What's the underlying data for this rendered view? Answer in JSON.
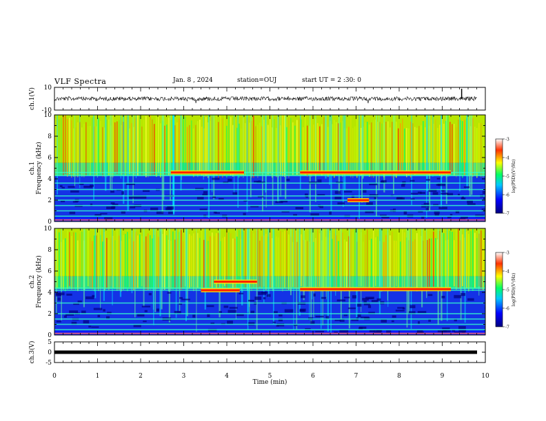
{
  "header": {
    "title": "VLF Spectra",
    "date": "Jan. 8 , 2024",
    "station": "station=OUJ",
    "start": "start UT = 2 :30: 0"
  },
  "chart_data": [
    {
      "type": "line",
      "panel": "ch.1 waveform",
      "ylabel": "ch.1(V)",
      "ylim": [
        -10,
        10
      ],
      "yticks": [
        "10",
        "-10"
      ],
      "xlim": [
        0,
        10
      ],
      "series": [
        {
          "values_mean": 0,
          "color": "#000000"
        }
      ]
    },
    {
      "type": "heatmap",
      "panel": "ch.1 spectrogram",
      "ylabel": "ch.1 Frequency (kHz)",
      "ylim": [
        0,
        10
      ],
      "yticks": [
        "0",
        "2",
        "4",
        "6",
        "8",
        "10"
      ],
      "xlim": [
        0,
        10
      ],
      "colorbar": {
        "label": "log(PSD)(V²/Hz)",
        "range": [
          -7,
          -3
        ],
        "ticks": [
          "-3",
          "-4",
          "-5",
          "-6",
          "-7"
        ]
      },
      "tones_khz": [
        0.5,
        1.0,
        1.5,
        2.0,
        2.4,
        3.0,
        3.6,
        4.3,
        4.6
      ],
      "intense_bands": [
        {
          "t_start": 2.7,
          "t_end": 4.4,
          "freq_khz": 4.6
        },
        {
          "t_start": 5.7,
          "t_end": 9.2,
          "freq_khz": 4.6
        },
        {
          "t_start": 6.8,
          "t_end": 7.3,
          "freq_khz": 2.0
        }
      ]
    },
    {
      "type": "heatmap",
      "panel": "ch.2 spectrogram",
      "ylabel": "ch.2 Frequency (kHz)",
      "ylim": [
        0,
        10
      ],
      "yticks": [
        "0",
        "2",
        "4",
        "6",
        "8",
        "10"
      ],
      "xlim": [
        0,
        10
      ],
      "colorbar": {
        "label": "log(PSD)(V²/Hz)",
        "range": [
          -7,
          -3
        ],
        "ticks": [
          "-3",
          "-4",
          "-5",
          "-6",
          "-7"
        ]
      },
      "tones_khz": [
        0.5,
        1.0,
        1.5,
        2.0,
        3.0,
        4.2,
        4.4
      ],
      "intense_bands": [
        {
          "t_start": 3.4,
          "t_end": 4.3,
          "freq_khz": 4.2
        },
        {
          "t_start": 5.7,
          "t_end": 9.2,
          "freq_khz": 4.3
        },
        {
          "t_start": 3.7,
          "t_end": 4.7,
          "freq_khz": 5.0
        }
      ]
    },
    {
      "type": "line",
      "panel": "ch.3 waveform",
      "ylabel": "ch.3(V)",
      "ylim": [
        -5,
        5
      ],
      "yticks": [
        "5",
        "0",
        "-5"
      ],
      "xlim": [
        0,
        10
      ],
      "series": [
        {
          "values_mean": 0,
          "color": "#000000"
        }
      ]
    }
  ],
  "time_axis": {
    "label": "Time (min)",
    "ticks": [
      "0",
      "1",
      "2",
      "3",
      "4",
      "5",
      "6",
      "7",
      "8",
      "9",
      "10"
    ]
  }
}
